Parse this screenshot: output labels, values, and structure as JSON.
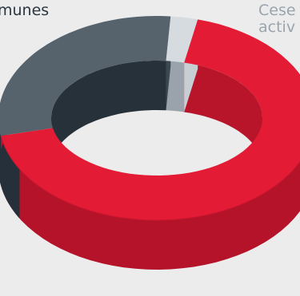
{
  "chart_data": {
    "type": "pie",
    "style": "3d-donut",
    "labels": {
      "left": "munes",
      "right_line1": "Cese",
      "right_line2": "activ"
    },
    "slices": [
      {
        "key": "dark",
        "share": 0.48,
        "color": "#2f3a43"
      },
      {
        "key": "gray",
        "share": 0.03,
        "color": "#b0b8bf"
      },
      {
        "key": "red",
        "share": 0.49,
        "color": "#e31b35"
      }
    ]
  }
}
